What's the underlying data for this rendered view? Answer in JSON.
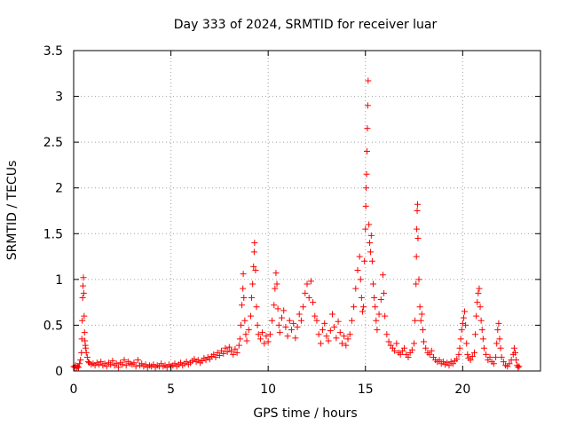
{
  "chart_data": {
    "type": "scatter",
    "title": "Day 333 of 2024, SRMTID for receiver luar",
    "xlabel": "GPS time / hours",
    "ylabel": "SRMTID / TECUs",
    "xlim": [
      0,
      24
    ],
    "ylim": [
      0,
      3.5
    ],
    "grid": true,
    "marker": "+",
    "marker_color": "#ff0000",
    "xticks": [
      {
        "value": 0,
        "label": "0"
      },
      {
        "value": 5,
        "label": "5"
      },
      {
        "value": 10,
        "label": "10"
      },
      {
        "value": 15,
        "label": "15"
      },
      {
        "value": 20,
        "label": "20"
      }
    ],
    "yticks": [
      {
        "value": 0,
        "label": "0"
      },
      {
        "value": 0.5,
        "label": "0.5"
      },
      {
        "value": 1,
        "label": "1"
      },
      {
        "value": 1.5,
        "label": "1.5"
      },
      {
        "value": 2,
        "label": "2"
      },
      {
        "value": 2.5,
        "label": "2.5"
      },
      {
        "value": 3,
        "label": "3"
      },
      {
        "value": 3.5,
        "label": "3.5"
      }
    ],
    "series": [
      {
        "name": "SRMTID",
        "points": [
          [
            0.0,
            0.05
          ],
          [
            0.05,
            0.04
          ],
          [
            0.1,
            0.06
          ],
          [
            0.15,
            0.03
          ],
          [
            0.2,
            0.05
          ],
          [
            0.25,
            0.04
          ],
          [
            0.3,
            0.08
          ],
          [
            0.35,
            0.12
          ],
          [
            0.4,
            0.2
          ],
          [
            0.42,
            0.35
          ],
          [
            0.44,
            0.55
          ],
          [
            0.46,
            0.8
          ],
          [
            0.48,
            0.93
          ],
          [
            0.5,
            1.02
          ],
          [
            0.52,
            0.85
          ],
          [
            0.54,
            0.6
          ],
          [
            0.56,
            0.42
          ],
          [
            0.58,
            0.33
          ],
          [
            0.6,
            0.28
          ],
          [
            0.62,
            0.25
          ],
          [
            0.65,
            0.2
          ],
          [
            0.7,
            0.15
          ],
          [
            0.75,
            0.1
          ],
          [
            0.8,
            0.09
          ],
          [
            0.9,
            0.07
          ],
          [
            1.0,
            0.08
          ],
          [
            1.1,
            0.06
          ],
          [
            1.2,
            0.09
          ],
          [
            1.3,
            0.07
          ],
          [
            1.4,
            0.1
          ],
          [
            1.5,
            0.06
          ],
          [
            1.6,
            0.08
          ],
          [
            1.7,
            0.05
          ],
          [
            1.8,
            0.09
          ],
          [
            1.9,
            0.07
          ],
          [
            2.0,
            0.11
          ],
          [
            2.1,
            0.06
          ],
          [
            2.2,
            0.08
          ],
          [
            2.3,
            0.04
          ],
          [
            2.4,
            0.09
          ],
          [
            2.5,
            0.07
          ],
          [
            2.6,
            0.12
          ],
          [
            2.7,
            0.06
          ],
          [
            2.8,
            0.1
          ],
          [
            2.9,
            0.08
          ],
          [
            3.0,
            0.07
          ],
          [
            3.1,
            0.09
          ],
          [
            3.2,
            0.05
          ],
          [
            3.3,
            0.12
          ],
          [
            3.4,
            0.06
          ],
          [
            3.5,
            0.08
          ],
          [
            3.6,
            0.05
          ],
          [
            3.7,
            0.07
          ],
          [
            3.8,
            0.04
          ],
          [
            3.9,
            0.06
          ],
          [
            4.0,
            0.05
          ],
          [
            4.1,
            0.07
          ],
          [
            4.2,
            0.04
          ],
          [
            4.3,
            0.06
          ],
          [
            4.4,
            0.05
          ],
          [
            4.5,
            0.08
          ],
          [
            4.6,
            0.05
          ],
          [
            4.7,
            0.06
          ],
          [
            4.8,
            0.04
          ],
          [
            4.9,
            0.07
          ],
          [
            5.0,
            0.05
          ],
          [
            5.1,
            0.06
          ],
          [
            5.2,
            0.08
          ],
          [
            5.3,
            0.05
          ],
          [
            5.4,
            0.07
          ],
          [
            5.5,
            0.09
          ],
          [
            5.6,
            0.06
          ],
          [
            5.7,
            0.08
          ],
          [
            5.8,
            0.1
          ],
          [
            5.9,
            0.07
          ],
          [
            6.0,
            0.09
          ],
          [
            6.1,
            0.11
          ],
          [
            6.2,
            0.13
          ],
          [
            6.3,
            0.1
          ],
          [
            6.4,
            0.12
          ],
          [
            6.5,
            0.09
          ],
          [
            6.6,
            0.11
          ],
          [
            6.7,
            0.14
          ],
          [
            6.8,
            0.12
          ],
          [
            6.9,
            0.15
          ],
          [
            7.0,
            0.13
          ],
          [
            7.1,
            0.16
          ],
          [
            7.2,
            0.18
          ],
          [
            7.3,
            0.15
          ],
          [
            7.4,
            0.2
          ],
          [
            7.5,
            0.17
          ],
          [
            7.6,
            0.22
          ],
          [
            7.7,
            0.19
          ],
          [
            7.8,
            0.25
          ],
          [
            7.9,
            0.21
          ],
          [
            8.0,
            0.26
          ],
          [
            8.1,
            0.22
          ],
          [
            8.2,
            0.18
          ],
          [
            8.3,
            0.24
          ],
          [
            8.4,
            0.2
          ],
          [
            8.5,
            0.28
          ],
          [
            8.55,
            0.35
          ],
          [
            8.6,
            0.5
          ],
          [
            8.65,
            0.72
          ],
          [
            8.7,
            0.9
          ],
          [
            8.72,
            1.06
          ],
          [
            8.75,
            0.8
          ],
          [
            8.8,
            0.55
          ],
          [
            8.85,
            0.4
          ],
          [
            8.9,
            0.33
          ],
          [
            9.0,
            0.45
          ],
          [
            9.1,
            0.6
          ],
          [
            9.15,
            0.8
          ],
          [
            9.2,
            0.95
          ],
          [
            9.25,
            1.14
          ],
          [
            9.28,
            1.3
          ],
          [
            9.3,
            1.4
          ],
          [
            9.35,
            1.1
          ],
          [
            9.4,
            0.7
          ],
          [
            9.45,
            0.5
          ],
          [
            9.5,
            0.4
          ],
          [
            9.6,
            0.35
          ],
          [
            9.7,
            0.42
          ],
          [
            9.8,
            0.3
          ],
          [
            9.9,
            0.38
          ],
          [
            10.0,
            0.32
          ],
          [
            10.1,
            0.4
          ],
          [
            10.2,
            0.55
          ],
          [
            10.3,
            0.72
          ],
          [
            10.35,
            0.9
          ],
          [
            10.4,
            1.07
          ],
          [
            10.45,
            0.95
          ],
          [
            10.5,
            0.68
          ],
          [
            10.55,
            0.5
          ],
          [
            10.6,
            0.42
          ],
          [
            10.7,
            0.58
          ],
          [
            10.8,
            0.66
          ],
          [
            10.9,
            0.48
          ],
          [
            11.0,
            0.38
          ],
          [
            11.1,
            0.55
          ],
          [
            11.2,
            0.45
          ],
          [
            11.3,
            0.52
          ],
          [
            11.4,
            0.36
          ],
          [
            11.5,
            0.48
          ],
          [
            11.6,
            0.62
          ],
          [
            11.7,
            0.55
          ],
          [
            11.8,
            0.7
          ],
          [
            11.9,
            0.85
          ],
          [
            12.0,
            0.95
          ],
          [
            12.1,
            0.8
          ],
          [
            12.2,
            0.98
          ],
          [
            12.3,
            0.75
          ],
          [
            12.4,
            0.6
          ],
          [
            12.5,
            0.55
          ],
          [
            12.6,
            0.4
          ],
          [
            12.7,
            0.3
          ],
          [
            12.8,
            0.45
          ],
          [
            12.9,
            0.52
          ],
          [
            13.0,
            0.38
          ],
          [
            13.1,
            0.33
          ],
          [
            13.2,
            0.44
          ],
          [
            13.3,
            0.62
          ],
          [
            13.4,
            0.48
          ],
          [
            13.5,
            0.36
          ],
          [
            13.6,
            0.54
          ],
          [
            13.7,
            0.42
          ],
          [
            13.8,
            0.3
          ],
          [
            13.9,
            0.38
          ],
          [
            14.0,
            0.28
          ],
          [
            14.1,
            0.35
          ],
          [
            14.2,
            0.4
          ],
          [
            14.3,
            0.55
          ],
          [
            14.4,
            0.7
          ],
          [
            14.5,
            0.9
          ],
          [
            14.6,
            1.1
          ],
          [
            14.7,
            1.25
          ],
          [
            14.75,
            1.0
          ],
          [
            14.8,
            0.8
          ],
          [
            14.85,
            0.65
          ],
          [
            14.9,
            0.7
          ],
          [
            14.95,
            1.2
          ],
          [
            15.0,
            1.55
          ],
          [
            15.02,
            1.8
          ],
          [
            15.04,
            2.0
          ],
          [
            15.06,
            2.15
          ],
          [
            15.08,
            2.4
          ],
          [
            15.1,
            2.65
          ],
          [
            15.12,
            2.9
          ],
          [
            15.14,
            3.17
          ],
          [
            15.18,
            1.6
          ],
          [
            15.22,
            1.4
          ],
          [
            15.26,
            1.3
          ],
          [
            15.3,
            1.48
          ],
          [
            15.35,
            1.2
          ],
          [
            15.4,
            0.95
          ],
          [
            15.45,
            0.8
          ],
          [
            15.5,
            0.7
          ],
          [
            15.55,
            0.55
          ],
          [
            15.6,
            0.45
          ],
          [
            15.7,
            0.62
          ],
          [
            15.8,
            0.78
          ],
          [
            15.9,
            1.05
          ],
          [
            15.95,
            0.85
          ],
          [
            16.0,
            0.6
          ],
          [
            16.1,
            0.4
          ],
          [
            16.2,
            0.32
          ],
          [
            16.3,
            0.28
          ],
          [
            16.4,
            0.25
          ],
          [
            16.5,
            0.22
          ],
          [
            16.6,
            0.3
          ],
          [
            16.7,
            0.2
          ],
          [
            16.8,
            0.18
          ],
          [
            16.9,
            0.22
          ],
          [
            17.0,
            0.25
          ],
          [
            17.1,
            0.18
          ],
          [
            17.2,
            0.15
          ],
          [
            17.3,
            0.2
          ],
          [
            17.4,
            0.23
          ],
          [
            17.5,
            0.3
          ],
          [
            17.55,
            0.55
          ],
          [
            17.6,
            0.95
          ],
          [
            17.62,
            1.25
          ],
          [
            17.64,
            1.55
          ],
          [
            17.66,
            1.75
          ],
          [
            17.68,
            1.82
          ],
          [
            17.7,
            1.45
          ],
          [
            17.75,
            1.0
          ],
          [
            17.8,
            0.7
          ],
          [
            17.85,
            0.55
          ],
          [
            17.9,
            0.62
          ],
          [
            17.95,
            0.45
          ],
          [
            18.0,
            0.32
          ],
          [
            18.1,
            0.25
          ],
          [
            18.2,
            0.2
          ],
          [
            18.3,
            0.18
          ],
          [
            18.4,
            0.22
          ],
          [
            18.5,
            0.15
          ],
          [
            18.6,
            0.12
          ],
          [
            18.7,
            0.1
          ],
          [
            18.8,
            0.12
          ],
          [
            18.9,
            0.08
          ],
          [
            19.0,
            0.1
          ],
          [
            19.1,
            0.07
          ],
          [
            19.2,
            0.09
          ],
          [
            19.3,
            0.06
          ],
          [
            19.4,
            0.1
          ],
          [
            19.5,
            0.08
          ],
          [
            19.6,
            0.11
          ],
          [
            19.7,
            0.13
          ],
          [
            19.8,
            0.18
          ],
          [
            19.85,
            0.25
          ],
          [
            19.9,
            0.35
          ],
          [
            19.95,
            0.45
          ],
          [
            20.0,
            0.52
          ],
          [
            20.05,
            0.58
          ],
          [
            20.1,
            0.65
          ],
          [
            20.15,
            0.5
          ],
          [
            20.2,
            0.3
          ],
          [
            20.25,
            0.18
          ],
          [
            20.3,
            0.14
          ],
          [
            20.4,
            0.12
          ],
          [
            20.5,
            0.16
          ],
          [
            20.6,
            0.2
          ],
          [
            20.65,
            0.4
          ],
          [
            20.7,
            0.6
          ],
          [
            20.75,
            0.75
          ],
          [
            20.8,
            0.85
          ],
          [
            20.85,
            0.9
          ],
          [
            20.9,
            0.7
          ],
          [
            20.95,
            0.55
          ],
          [
            21.0,
            0.45
          ],
          [
            21.05,
            0.35
          ],
          [
            21.1,
            0.25
          ],
          [
            21.2,
            0.18
          ],
          [
            21.3,
            0.12
          ],
          [
            21.4,
            0.15
          ],
          [
            21.5,
            0.1
          ],
          [
            21.6,
            0.08
          ],
          [
            21.7,
            0.15
          ],
          [
            21.75,
            0.3
          ],
          [
            21.8,
            0.45
          ],
          [
            21.85,
            0.52
          ],
          [
            21.9,
            0.35
          ],
          [
            21.95,
            0.25
          ],
          [
            22.0,
            0.15
          ],
          [
            22.1,
            0.1
          ],
          [
            22.2,
            0.06
          ],
          [
            22.3,
            0.05
          ],
          [
            22.4,
            0.08
          ],
          [
            22.5,
            0.12
          ],
          [
            22.6,
            0.18
          ],
          [
            22.65,
            0.25
          ],
          [
            22.7,
            0.2
          ],
          [
            22.75,
            0.12
          ],
          [
            22.8,
            0.06
          ],
          [
            22.85,
            0.04
          ],
          [
            22.9,
            0.05
          ]
        ]
      }
    ]
  }
}
